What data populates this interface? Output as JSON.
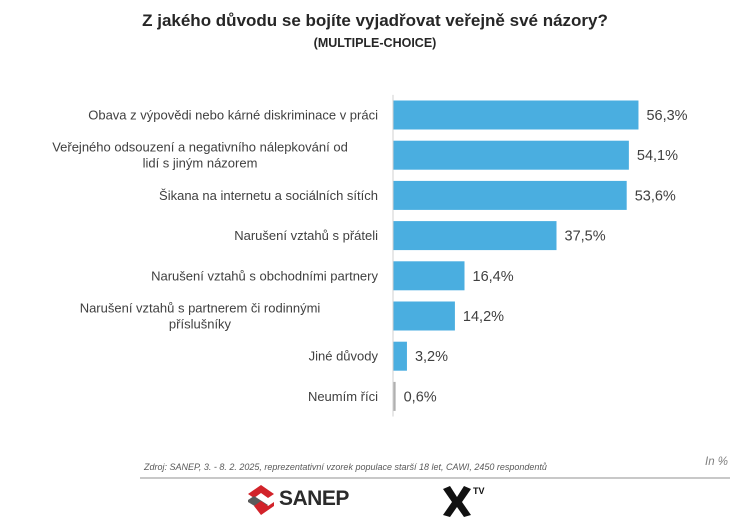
{
  "chart_data": {
    "type": "bar",
    "orientation": "horizontal",
    "title": "Z jakého důvodu se bojíte vyjadřovat veřejně své názory?",
    "subtitle": "(MULTIPLE-CHOICE)",
    "categories": [
      [
        "Obava z výpovědi nebo kárné diskriminace v práci"
      ],
      [
        "Veřejného odsouzení a negativního nálepkování od",
        "lidí s jiným názorem"
      ],
      [
        "Šikana na internetu a sociálních sítích"
      ],
      [
        "Narušení vztahů s přáteli"
      ],
      [
        "Narušení vztahů s obchodními partnery"
      ],
      [
        "Narušení vztahů s partnerem či rodinnými",
        "příslušníky"
      ],
      [
        "Jiné důvody"
      ],
      [
        "Neumím říci"
      ]
    ],
    "values": [
      56.3,
      54.1,
      53.6,
      37.5,
      16.4,
      14.2,
      3.2,
      0.6
    ],
    "value_labels": [
      "56,3%",
      "54,1%",
      "53,6%",
      "37,5%",
      "16,4%",
      "14,2%",
      "3,2%",
      "0,6%"
    ],
    "xlim": [
      0,
      100
    ],
    "grid": false,
    "legend": "none",
    "colors": {
      "bar": "#4aaee0",
      "bar_small": "#b0b0b0",
      "axis": "#d0d0d0"
    }
  },
  "footer": {
    "source": "Zdroj: SANEP, 3. - 8. 2. 2025, reprezentativní vzorek populace starší 18 let, CAWI, 2450 respondentů",
    "unit": "In %",
    "logo_sanep": "SANEP",
    "logo_xtv": "XTV",
    "logo_xtv_sup": "TV",
    "logo_sanep_icon": "sanep-emblem-icon",
    "logo_xtv_icon": "x-tv-icon"
  }
}
